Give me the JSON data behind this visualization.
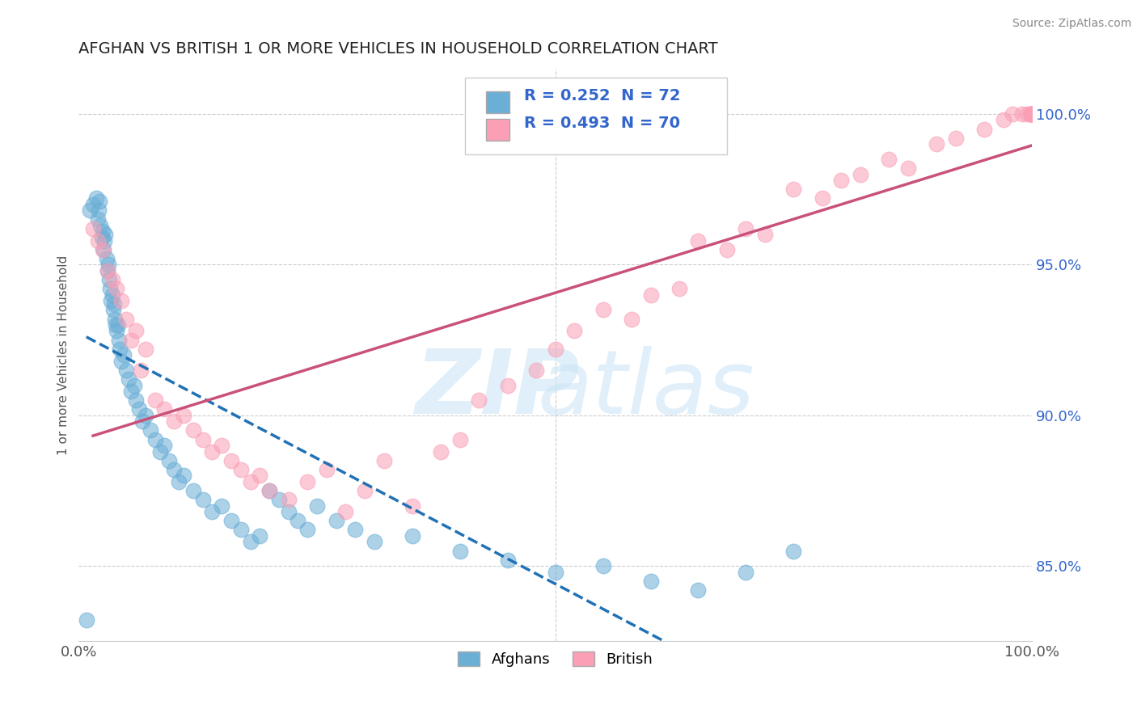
{
  "title": "AFGHAN VS BRITISH 1 OR MORE VEHICLES IN HOUSEHOLD CORRELATION CHART",
  "source": "Source: ZipAtlas.com",
  "ylabel": "1 or more Vehicles in Household",
  "xlim": [
    0,
    100
  ],
  "ylim": [
    82.5,
    101.5
  ],
  "yticks": [
    85.0,
    90.0,
    95.0,
    100.0
  ],
  "ytick_labels": [
    "85.0%",
    "90.0%",
    "95.0%",
    "100.0%"
  ],
  "xtick_labels": [
    "0.0%",
    "100.0%"
  ],
  "afghan_color": "#6baed6",
  "british_color": "#fa9fb5",
  "afghan_line_color": "#2171b5",
  "british_line_color": "#c9517a",
  "R_afghan": 0.252,
  "N_afghan": 72,
  "R_british": 0.493,
  "N_british": 70,
  "legend_text_color": "#3366cc",
  "afghan_x": [
    0.8,
    1.2,
    1.5,
    1.8,
    2.0,
    2.1,
    2.2,
    2.3,
    2.4,
    2.5,
    2.6,
    2.7,
    2.8,
    2.9,
    3.0,
    3.1,
    3.2,
    3.3,
    3.4,
    3.5,
    3.6,
    3.7,
    3.8,
    3.9,
    4.0,
    4.1,
    4.2,
    4.3,
    4.5,
    4.7,
    5.0,
    5.2,
    5.5,
    5.8,
    6.0,
    6.3,
    6.7,
    7.0,
    7.5,
    8.0,
    8.5,
    9.0,
    9.5,
    10.0,
    10.5,
    11.0,
    12.0,
    13.0,
    14.0,
    15.0,
    16.0,
    17.0,
    18.0,
    19.0,
    20.0,
    21.0,
    22.0,
    23.0,
    24.0,
    25.0,
    27.0,
    29.0,
    31.0,
    35.0,
    40.0,
    45.0,
    50.0,
    55.0,
    60.0,
    65.0,
    70.0,
    75.0
  ],
  "afghan_y": [
    83.2,
    96.8,
    97.0,
    97.2,
    96.5,
    96.8,
    97.1,
    96.3,
    95.9,
    96.1,
    95.5,
    95.8,
    96.0,
    95.2,
    94.8,
    95.0,
    94.5,
    94.2,
    93.8,
    94.0,
    93.5,
    93.7,
    93.2,
    93.0,
    92.8,
    93.0,
    92.5,
    92.2,
    91.8,
    92.0,
    91.5,
    91.2,
    90.8,
    91.0,
    90.5,
    90.2,
    89.8,
    90.0,
    89.5,
    89.2,
    88.8,
    89.0,
    88.5,
    88.2,
    87.8,
    88.0,
    87.5,
    87.2,
    86.8,
    87.0,
    86.5,
    86.2,
    85.8,
    86.0,
    87.5,
    87.2,
    86.8,
    86.5,
    86.2,
    87.0,
    86.5,
    86.2,
    85.8,
    86.0,
    85.5,
    85.2,
    84.8,
    85.0,
    84.5,
    84.2,
    84.8,
    85.5
  ],
  "british_x": [
    1.5,
    2.0,
    2.5,
    3.0,
    3.5,
    4.0,
    4.5,
    5.0,
    5.5,
    6.0,
    6.5,
    7.0,
    8.0,
    9.0,
    10.0,
    11.0,
    12.0,
    13.0,
    14.0,
    15.0,
    16.0,
    17.0,
    18.0,
    19.0,
    20.0,
    22.0,
    24.0,
    26.0,
    28.0,
    30.0,
    32.0,
    35.0,
    38.0,
    40.0,
    42.0,
    45.0,
    48.0,
    50.0,
    52.0,
    55.0,
    58.0,
    60.0,
    63.0,
    65.0,
    68.0,
    70.0,
    72.0,
    75.0,
    78.0,
    80.0,
    82.0,
    85.0,
    87.0,
    90.0,
    92.0,
    95.0,
    97.0,
    98.0,
    99.0,
    99.5,
    99.8,
    100.0,
    100.0,
    100.0,
    100.0,
    100.0,
    100.0,
    100.0,
    100.0,
    100.0
  ],
  "british_y": [
    96.2,
    95.8,
    95.5,
    94.8,
    94.5,
    94.2,
    93.8,
    93.2,
    92.5,
    92.8,
    91.5,
    92.2,
    90.5,
    90.2,
    89.8,
    90.0,
    89.5,
    89.2,
    88.8,
    89.0,
    88.5,
    88.2,
    87.8,
    88.0,
    87.5,
    87.2,
    87.8,
    88.2,
    86.8,
    87.5,
    88.5,
    87.0,
    88.8,
    89.2,
    90.5,
    91.0,
    91.5,
    92.2,
    92.8,
    93.5,
    93.2,
    94.0,
    94.2,
    95.8,
    95.5,
    96.2,
    96.0,
    97.5,
    97.2,
    97.8,
    98.0,
    98.5,
    98.2,
    99.0,
    99.2,
    99.5,
    99.8,
    100.0,
    100.0,
    100.0,
    100.0,
    100.0,
    100.0,
    100.0,
    100.0,
    100.0,
    100.0,
    100.0,
    100.0,
    100.0
  ]
}
